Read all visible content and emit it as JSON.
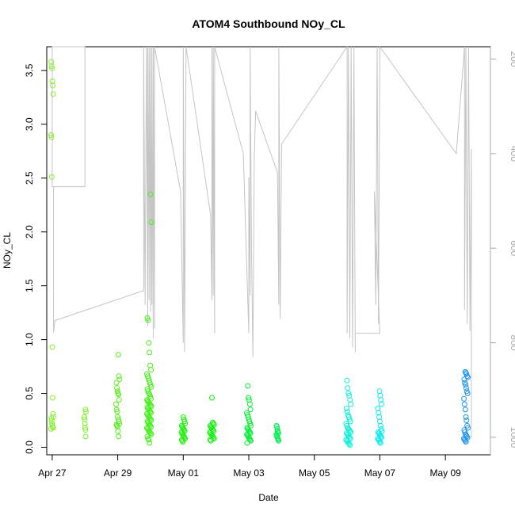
{
  "chart_data": {
    "type": "scatter",
    "title": "ATOM4 Southbound NOy_CL",
    "xlabel": "Date",
    "ylabel": "NOy_CL",
    "xlim": [
      "2018-04-26T20:00",
      "2018-05-10T09:00"
    ],
    "ylim": [
      -0.07,
      3.72
    ],
    "x_ticks": [
      {
        "x": "2018-04-27",
        "label": "Apr 27"
      },
      {
        "x": "2018-04-29",
        "label": "Apr 29"
      },
      {
        "x": "2018-05-01",
        "label": "May 01"
      },
      {
        "x": "2018-05-03",
        "label": "May 03"
      },
      {
        "x": "2018-05-05",
        "label": "May 05"
      },
      {
        "x": "2018-05-07",
        "label": "May 07"
      },
      {
        "x": "2018-05-09",
        "label": "May 09"
      }
    ],
    "y_ticks": [
      {
        "y": 0.0,
        "label": "0.0"
      },
      {
        "y": 0.5,
        "label": "0.5"
      },
      {
        "y": 1.0,
        "label": "1.0"
      },
      {
        "y": 1.5,
        "label": "1.5"
      },
      {
        "y": 2.0,
        "label": "2.0"
      },
      {
        "y": 2.5,
        "label": "2.5"
      },
      {
        "y": 3.0,
        "label": "3.0"
      },
      {
        "y": 3.5,
        "label": "3.5"
      }
    ],
    "y2_range": [
      174,
      1037
    ],
    "y2_ticks": [
      {
        "y": 200,
        "label": "200"
      },
      {
        "y": 400,
        "label": "400"
      },
      {
        "y": 600,
        "label": "600"
      },
      {
        "y": 800,
        "label": "800"
      },
      {
        "y": 1000,
        "label": "1000"
      }
    ],
    "pressure_color": "#c4c4c4",
    "flights": [
      {
        "x": "2018-04-27T00:00",
        "dx": 0.07,
        "color": "#88ef30",
        "values": [
          0.17,
          0.18,
          0.19,
          0.2,
          0.22,
          0.25,
          0.27,
          0.28,
          0.31,
          0.46,
          0.93,
          2.51,
          2.88,
          2.9,
          3.28,
          3.36,
          3.4,
          3.52,
          3.54,
          3.58
        ]
      },
      {
        "x": "2018-04-28T00:00",
        "dx": 0.05,
        "color": "#7ef02c",
        "values": [
          0.1,
          0.16,
          0.18,
          0.22,
          0.26,
          0.28,
          0.33,
          0.35
        ]
      },
      {
        "x": "2018-04-29T00:00",
        "dx": 0.1,
        "color": "#5cef20",
        "values": [
          0.1,
          0.15,
          0.19,
          0.2,
          0.21,
          0.22,
          0.24,
          0.26,
          0.28,
          0.33,
          0.35,
          0.4,
          0.44,
          0.49,
          0.5,
          0.52,
          0.55,
          0.6,
          0.63,
          0.66,
          0.86
        ]
      },
      {
        "x": "2018-04-29T23:00",
        "dx": 0.13,
        "color": "#45ef1a",
        "values": [
          0.04,
          0.07,
          0.08,
          0.1,
          0.12,
          0.13,
          0.14,
          0.15,
          0.16,
          0.17,
          0.18,
          0.19,
          0.2,
          0.21,
          0.22,
          0.23,
          0.24,
          0.25,
          0.26,
          0.27,
          0.28,
          0.29,
          0.3,
          0.31,
          0.32,
          0.33,
          0.34,
          0.35,
          0.36,
          0.37,
          0.38,
          0.39,
          0.4,
          0.41,
          0.42,
          0.43,
          0.44,
          0.45,
          0.47,
          0.49,
          0.5,
          0.52,
          0.54,
          0.56,
          0.58,
          0.6,
          0.62,
          0.64,
          0.66,
          0.68,
          0.72,
          0.76,
          0.88,
          0.97,
          1.18,
          1.2,
          2.09,
          2.35
        ]
      },
      {
        "x": "2018-05-01T00:00",
        "dx": 0.11,
        "color": "#22ee10",
        "values": [
          0.05,
          0.06,
          0.07,
          0.08,
          0.09,
          0.1,
          0.11,
          0.12,
          0.13,
          0.14,
          0.15,
          0.16,
          0.17,
          0.18,
          0.19,
          0.2,
          0.22,
          0.24,
          0.26,
          0.28
        ]
      },
      {
        "x": "2018-05-01T21:00",
        "dx": 0.13,
        "color": "#14ee0f",
        "values": [
          0.06,
          0.07,
          0.08,
          0.09,
          0.1,
          0.11,
          0.12,
          0.13,
          0.14,
          0.15,
          0.16,
          0.17,
          0.18,
          0.19,
          0.2,
          0.21,
          0.22,
          0.23,
          0.46
        ]
      },
      {
        "x": "2018-05-03T00:00",
        "dx": 0.12,
        "color": "#0bee3a",
        "values": [
          0.04,
          0.06,
          0.07,
          0.08,
          0.09,
          0.1,
          0.11,
          0.12,
          0.13,
          0.14,
          0.15,
          0.16,
          0.17,
          0.18,
          0.2,
          0.22,
          0.24,
          0.26,
          0.28,
          0.3,
          0.32,
          0.35,
          0.4,
          0.44,
          0.46,
          0.57
        ]
      },
      {
        "x": "2018-05-03T21:00",
        "dx": 0.07,
        "color": "#0cee55",
        "values": [
          0.06,
          0.07,
          0.08,
          0.09,
          0.1,
          0.11,
          0.12,
          0.13,
          0.14,
          0.15,
          0.17,
          0.19,
          0.2
        ]
      },
      {
        "x": "2018-05-06T01:00",
        "dx": 0.14,
        "color": "#12eed8",
        "values": [
          0.02,
          0.03,
          0.04,
          0.05,
          0.06,
          0.07,
          0.08,
          0.09,
          0.1,
          0.11,
          0.12,
          0.13,
          0.14,
          0.15,
          0.16,
          0.17,
          0.18,
          0.2,
          0.22,
          0.24,
          0.26,
          0.28,
          0.3,
          0.33,
          0.36,
          0.4,
          0.44,
          0.48,
          0.5,
          0.55,
          0.62
        ]
      },
      {
        "x": "2018-05-07T00:00",
        "dx": 0.12,
        "color": "#10e8ee",
        "values": [
          0.04,
          0.05,
          0.06,
          0.07,
          0.08,
          0.09,
          0.1,
          0.11,
          0.12,
          0.13,
          0.14,
          0.15,
          0.17,
          0.2,
          0.24,
          0.28,
          0.32,
          0.36,
          0.4,
          0.44,
          0.48,
          0.52
        ]
      },
      {
        "x": "2018-05-09T15:00",
        "dx": 0.12,
        "color": "#1d95ee",
        "values": [
          0.05,
          0.06,
          0.07,
          0.08,
          0.09,
          0.1,
          0.11,
          0.12,
          0.14,
          0.16,
          0.18,
          0.2,
          0.25,
          0.28,
          0.35,
          0.4,
          0.45,
          0.5,
          0.52,
          0.55,
          0.58,
          0.6,
          0.63,
          0.65,
          0.66,
          0.68,
          0.69,
          0.7
        ]
      }
    ],
    "pressure_trace": [
      [
        "2018-04-27T00:00",
        174
      ],
      [
        "2018-04-27T00:00",
        210
      ],
      [
        "2018-04-27T00:00",
        260
      ],
      [
        "2018-04-27T00:00",
        320
      ],
      [
        "2018-04-27T00:00",
        360
      ],
      [
        "2018-04-27T00:00",
        400
      ],
      [
        "2018-04-27T00:00",
        470
      ],
      [
        "2018-04-28T00:00",
        470
      ],
      [
        "2018-04-28T00:00",
        174
      ],
      [
        "2018-04-27T00:00",
        174
      ],
      [
        "2018-04-27T00:00",
        470
      ],
      [
        "2018-04-27T01:00",
        470
      ],
      [
        "2018-04-27T01:00",
        778
      ],
      [
        "2018-04-27T02:00",
        753
      ],
      [
        "2018-04-29T19:00",
        690
      ],
      [
        "2018-04-29T19:00",
        174
      ],
      [
        "2018-04-29T20:00",
        720
      ],
      [
        "2018-04-29T21:00",
        174
      ],
      [
        "2018-04-29T22:00",
        765
      ],
      [
        "2018-04-29T22:00",
        174
      ],
      [
        "2018-04-29T23:00",
        710
      ],
      [
        "2018-04-29T23:00",
        174
      ],
      [
        "2018-04-30T00:00",
        735
      ],
      [
        "2018-04-30T00:00",
        174
      ],
      [
        "2018-04-30T01:00",
        720
      ],
      [
        "2018-04-30T01:00",
        174
      ],
      [
        "2018-04-30T02:00",
        790
      ],
      [
        "2018-04-30T02:00",
        174
      ],
      [
        "2018-04-30T03:00",
        770
      ],
      [
        "2018-04-30T03:00",
        174
      ],
      [
        "2018-04-30T22:00",
        480
      ],
      [
        "2018-05-01T00:00",
        800
      ],
      [
        "2018-05-01T00:00",
        174
      ],
      [
        "2018-05-01T01:00",
        820
      ],
      [
        "2018-05-01T02:00",
        174
      ],
      [
        "2018-05-01T20:00",
        530
      ],
      [
        "2018-05-01T21:00",
        710
      ],
      [
        "2018-05-01T21:00",
        174
      ],
      [
        "2018-05-01T22:00",
        700
      ],
      [
        "2018-05-01T22:00",
        174
      ],
      [
        "2018-05-01T23:00",
        780
      ],
      [
        "2018-05-01T23:00",
        174
      ],
      [
        "2018-05-02T20:00",
        400
      ],
      [
        "2018-05-03T00:00",
        780
      ],
      [
        "2018-05-03T00:00",
        450
      ],
      [
        "2018-05-03T01:00",
        700
      ],
      [
        "2018-05-03T01:00",
        174
      ],
      [
        "2018-05-03T02:00",
        610
      ],
      [
        "2018-05-03T03:00",
        830
      ],
      [
        "2018-05-03T04:00",
        410
      ],
      [
        "2018-05-03T05:00",
        310
      ],
      [
        "2018-05-03T21:00",
        440
      ],
      [
        "2018-05-03T22:00",
        720
      ],
      [
        "2018-05-03T22:00",
        174
      ],
      [
        "2018-05-03T23:00",
        750
      ],
      [
        "2018-05-04T00:00",
        380
      ],
      [
        "2018-05-06T00:00",
        174
      ],
      [
        "2018-05-06T00:00",
        780
      ],
      [
        "2018-05-06T01:00",
        174
      ],
      [
        "2018-05-06T02:00",
        790
      ],
      [
        "2018-05-06T03:00",
        174
      ],
      [
        "2018-05-06T04:00",
        810
      ],
      [
        "2018-05-06T05:00",
        174
      ],
      [
        "2018-05-06T06:00",
        820
      ],
      [
        "2018-05-06T06:00",
        780
      ],
      [
        "2018-05-07T00:00",
        780
      ],
      [
        "2018-05-06T20:00",
        480
      ],
      [
        "2018-05-06T21:00",
        720
      ],
      [
        "2018-05-06T22:00",
        174
      ],
      [
        "2018-05-06T23:00",
        760
      ],
      [
        "2018-05-07T00:00",
        174
      ],
      [
        "2018-05-09T08:00",
        400
      ],
      [
        "2018-05-09T14:00",
        174
      ],
      [
        "2018-05-09T14:00",
        730
      ],
      [
        "2018-05-09T15:00",
        174
      ],
      [
        "2018-05-09T16:00",
        760
      ],
      [
        "2018-05-09T17:00",
        174
      ],
      [
        "2018-05-09T18:00",
        775
      ],
      [
        "2018-05-09T19:00",
        390
      ],
      [
        "2018-05-09T19:00",
        1001
      ]
    ]
  }
}
